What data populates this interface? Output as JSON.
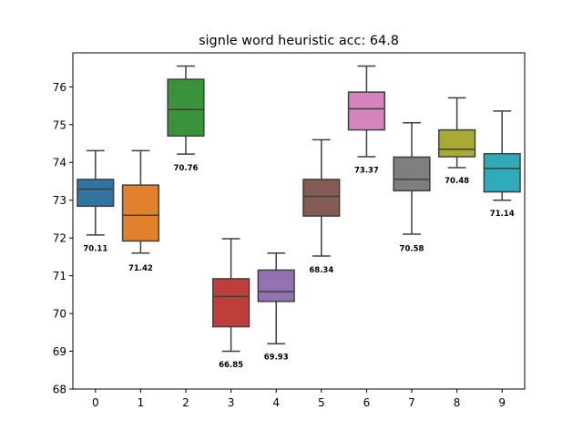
{
  "chart_data": {
    "type": "box",
    "title": "signle word heuristic acc: 64.8",
    "xlabel": "",
    "ylabel": "",
    "categories": [
      "0",
      "1",
      "2",
      "3",
      "4",
      "5",
      "6",
      "7",
      "8",
      "9"
    ],
    "ylim": [
      68,
      76.9
    ],
    "yticks": [
      68,
      69,
      70,
      71,
      72,
      73,
      74,
      75,
      76
    ],
    "grid": false,
    "boxes": [
      {
        "category": "0",
        "whisker_low": 72.08,
        "q1": 72.84,
        "median": 73.29,
        "q3": 73.55,
        "whisker_high": 74.31,
        "annotation": "70.11",
        "annotation_y": 71.65,
        "color": "#3274a1"
      },
      {
        "category": "1",
        "whisker_low": 71.6,
        "q1": 71.92,
        "median": 72.6,
        "q3": 73.4,
        "whisker_high": 74.31,
        "annotation": "71.42",
        "annotation_y": 71.14,
        "color": "#e1812c"
      },
      {
        "category": "2",
        "whisker_low": 74.22,
        "q1": 74.7,
        "median": 75.4,
        "q3": 76.2,
        "whisker_high": 76.55,
        "annotation": "70.76",
        "annotation_y": 73.79,
        "color": "#3a923a"
      },
      {
        "category": "3",
        "whisker_low": 69.0,
        "q1": 69.65,
        "median": 70.45,
        "q3": 70.92,
        "whisker_high": 71.98,
        "annotation": "66.85",
        "annotation_y": 68.58,
        "color": "#c03d3e"
      },
      {
        "category": "4",
        "whisker_low": 69.2,
        "q1": 70.32,
        "median": 70.58,
        "q3": 71.15,
        "whisker_high": 71.6,
        "annotation": "69.93",
        "annotation_y": 68.78,
        "color": "#9372b2"
      },
      {
        "category": "5",
        "whisker_low": 71.52,
        "q1": 72.58,
        "median": 73.1,
        "q3": 73.55,
        "whisker_high": 74.6,
        "annotation": "68.34",
        "annotation_y": 71.09,
        "color": "#845b53"
      },
      {
        "category": "6",
        "whisker_low": 74.15,
        "q1": 74.86,
        "median": 75.42,
        "q3": 75.86,
        "whisker_high": 76.55,
        "annotation": "73.37",
        "annotation_y": 73.73,
        "color": "#d684bd"
      },
      {
        "category": "7",
        "whisker_low": 72.1,
        "q1": 73.25,
        "median": 73.55,
        "q3": 74.14,
        "whisker_high": 75.05,
        "annotation": "70.58",
        "annotation_y": 71.65,
        "color": "#7f7f7f"
      },
      {
        "category": "8",
        "whisker_low": 73.86,
        "q1": 74.15,
        "median": 74.35,
        "q3": 74.86,
        "whisker_high": 75.71,
        "annotation": "70.48",
        "annotation_y": 73.45,
        "color": "#a9aa35"
      },
      {
        "category": "9",
        "whisker_low": 73.0,
        "q1": 73.22,
        "median": 73.84,
        "q3": 74.23,
        "whisker_high": 75.36,
        "annotation": "71.14",
        "annotation_y": 72.58,
        "color": "#2eabb8"
      }
    ]
  }
}
